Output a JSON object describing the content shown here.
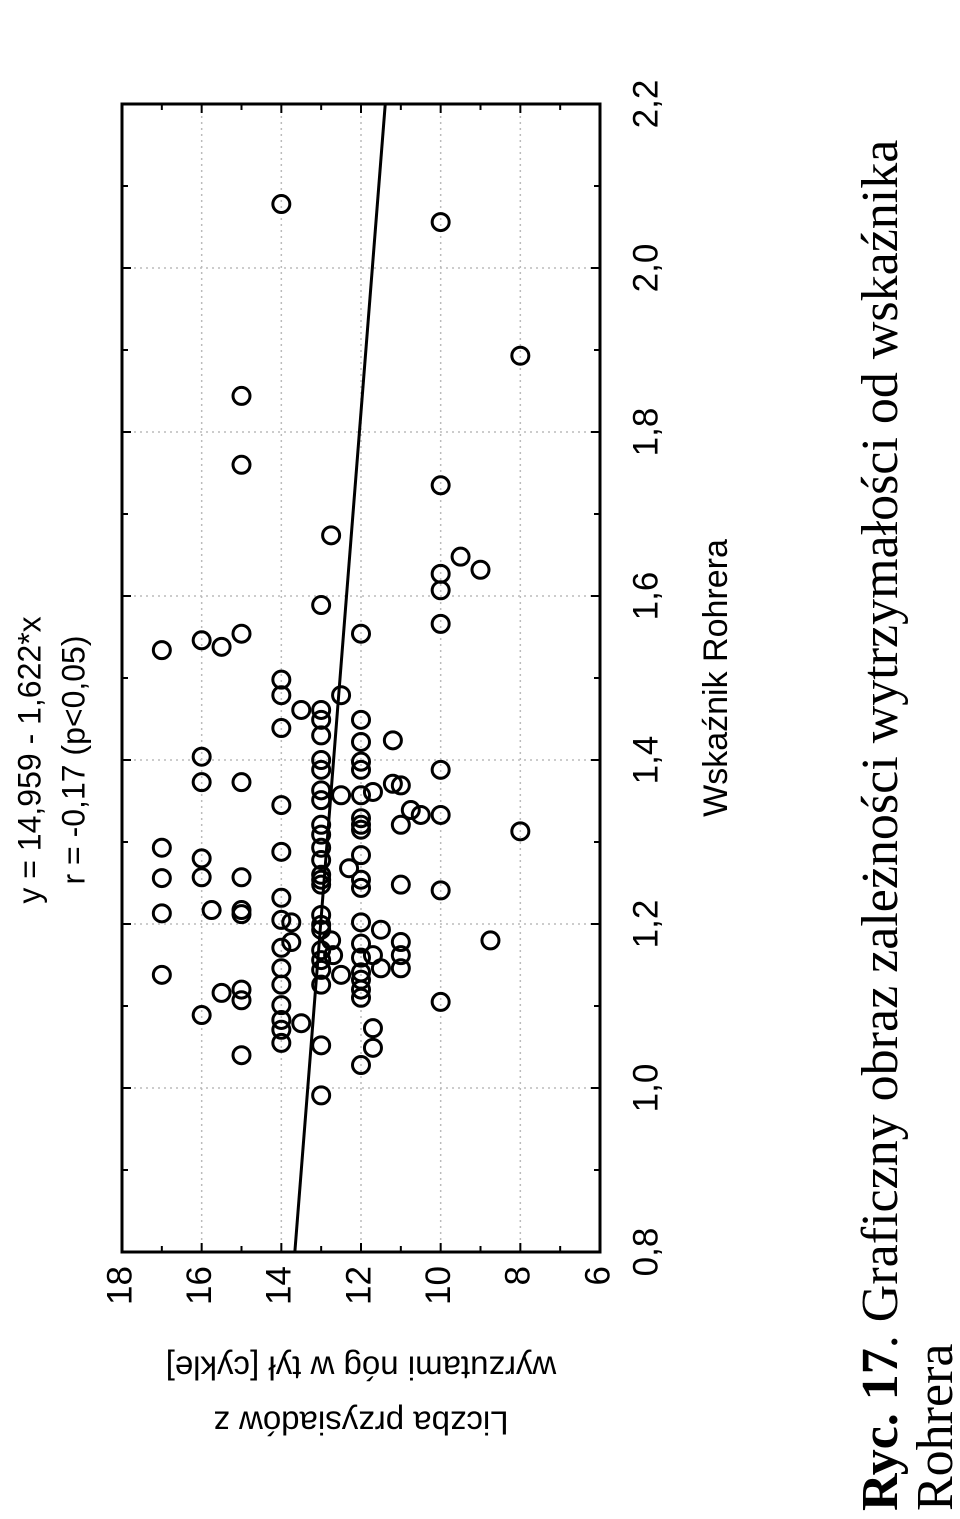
{
  "chart_data": {
    "type": "scatter",
    "title": "y = 14,959 - 1,622*x",
    "subtitle": "r = -0,17  (p<0,05)",
    "x_label": "Wskaźnik Rohrera",
    "y_label": [
      "Liczba przysiadów z",
      "wyrzutami nóg w tył [cykle]"
    ],
    "caption": {
      "label": "Ryc. 17",
      "line1": ". Graficzny obraz zależności wytrzymałości od wskaźnika",
      "line2": "Rohrera"
    },
    "xlim": [
      0.8,
      2.2
    ],
    "ylim": [
      6,
      18
    ],
    "xticks": [
      {
        "value": 0.8,
        "label": "0,8"
      },
      {
        "value": 1.0,
        "label": "1,0"
      },
      {
        "value": 1.2,
        "label": "1,2"
      },
      {
        "value": 1.4,
        "label": "1,4"
      },
      {
        "value": 1.6,
        "label": "1,6"
      },
      {
        "value": 1.8,
        "label": "1,8"
      },
      {
        "value": 2.0,
        "label": "2,0"
      },
      {
        "value": 2.2,
        "label": "2,2"
      }
    ],
    "yticks": [
      6,
      8,
      10,
      12,
      14,
      16,
      18
    ],
    "x_minor_ticks": [
      0.9,
      1.1,
      1.3,
      1.5,
      1.7,
      1.9,
      2.1
    ],
    "y_minor_ticks": [
      7,
      9,
      11,
      13,
      15,
      17
    ],
    "grid": true,
    "color": "#000000",
    "trend_line": {
      "x": [
        0.8,
        2.2
      ],
      "y": [
        13.661,
        11.391
      ]
    },
    "x": [
      1.534,
      1.293,
      1.256,
      1.213,
      1.138,
      1.546,
      1.404,
      1.373,
      1.28,
      1.257,
      1.217,
      1.089,
      1.538,
      1.116,
      1.844,
      1.76,
      1.554,
      1.373,
      1.257,
      1.217,
      1.212,
      1.12,
      1.107,
      1.04,
      2.078,
      1.498,
      1.479,
      1.439,
      1.345,
      1.288,
      1.232,
      1.205,
      1.171,
      1.146,
      1.126,
      1.101,
      1.083,
      1.071,
      1.055,
      1.202,
      1.178,
      1.461,
      1.079,
      1.589,
      1.461,
      1.449,
      1.43,
      1.4,
      1.388,
      1.363,
      1.351,
      1.321,
      1.309,
      1.293,
      1.278,
      1.26,
      1.254,
      1.248,
      1.211,
      1.199,
      1.193,
      1.168,
      1.156,
      1.144,
      1.126,
      1.052,
      0.991,
      1.674,
      1.18,
      1.162,
      1.479,
      1.357,
      1.138,
      1.268,
      1.554,
      1.449,
      1.422,
      1.398,
      1.388,
      1.357,
      1.329,
      1.321,
      1.315,
      1.284,
      1.254,
      1.244,
      1.202,
      1.176,
      1.159,
      1.141,
      1.132,
      1.12,
      1.11,
      1.028,
      1.361,
      1.162,
      1.073,
      1.049,
      1.193,
      1.146,
      1.424,
      1.371,
      1.369,
      1.321,
      1.248,
      1.178,
      1.162,
      1.146,
      1.339,
      1.333,
      2.056,
      1.735,
      1.627,
      1.607,
      1.566,
      1.388,
      1.333,
      1.241,
      1.105,
      1.648,
      1.632,
      1.18,
      1.893,
      1.313
    ],
    "values": [
      17,
      17,
      17,
      17,
      17,
      16,
      16,
      16,
      16,
      16,
      15.75,
      16,
      15.5,
      15.5,
      15,
      15,
      15,
      15,
      15,
      15,
      15,
      15,
      15,
      15,
      14,
      14,
      14,
      14,
      14,
      14,
      14,
      14,
      14,
      14,
      14,
      14,
      14,
      14,
      14,
      13.75,
      13.75,
      13.5,
      13.5,
      13,
      13,
      13,
      13,
      13,
      13,
      13,
      13,
      13,
      13,
      13,
      13,
      13,
      13,
      13,
      13,
      13,
      13,
      13,
      13,
      13,
      13,
      13,
      13,
      12.75,
      12.75,
      12.7,
      12.5,
      12.5,
      12.5,
      12.3,
      12,
      12,
      12,
      12,
      12,
      12,
      12,
      12,
      12,
      12,
      12,
      12,
      12,
      12,
      12,
      12,
      12,
      12,
      12,
      12,
      11.7,
      11.7,
      11.7,
      11.7,
      11.5,
      11.5,
      11.2,
      11.2,
      11,
      11,
      11,
      11,
      11,
      11,
      10.75,
      10.5,
      10,
      10,
      10,
      10,
      10,
      10,
      10,
      10,
      10,
      9.5,
      9,
      8.75,
      8,
      8
    ]
  }
}
